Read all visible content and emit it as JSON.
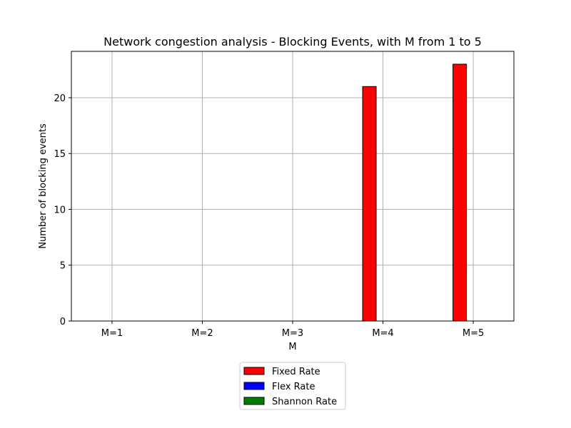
{
  "chart_data": {
    "type": "bar",
    "title": "Network congestion analysis - Blocking Events, with M from 1 to 5",
    "xlabel": "M",
    "ylabel": "Number of blocking events",
    "categories": [
      "M=1",
      "M=2",
      "M=3",
      "M=4",
      "M=5"
    ],
    "series": [
      {
        "name": "Fixed Rate",
        "color": "#ff0000",
        "values": [
          0,
          0,
          0,
          21,
          23
        ]
      },
      {
        "name": "Flex Rate",
        "color": "#0000ff",
        "values": [
          0,
          0,
          0,
          0,
          0
        ]
      },
      {
        "name": "Shannon Rate",
        "color": "#008000",
        "values": [
          0,
          0,
          0,
          0,
          0
        ]
      }
    ],
    "ylim": [
      0,
      24.15
    ],
    "yticks": [
      0,
      5,
      10,
      15,
      20
    ],
    "grid": true,
    "legend_position": "bottom-center, below plot"
  }
}
